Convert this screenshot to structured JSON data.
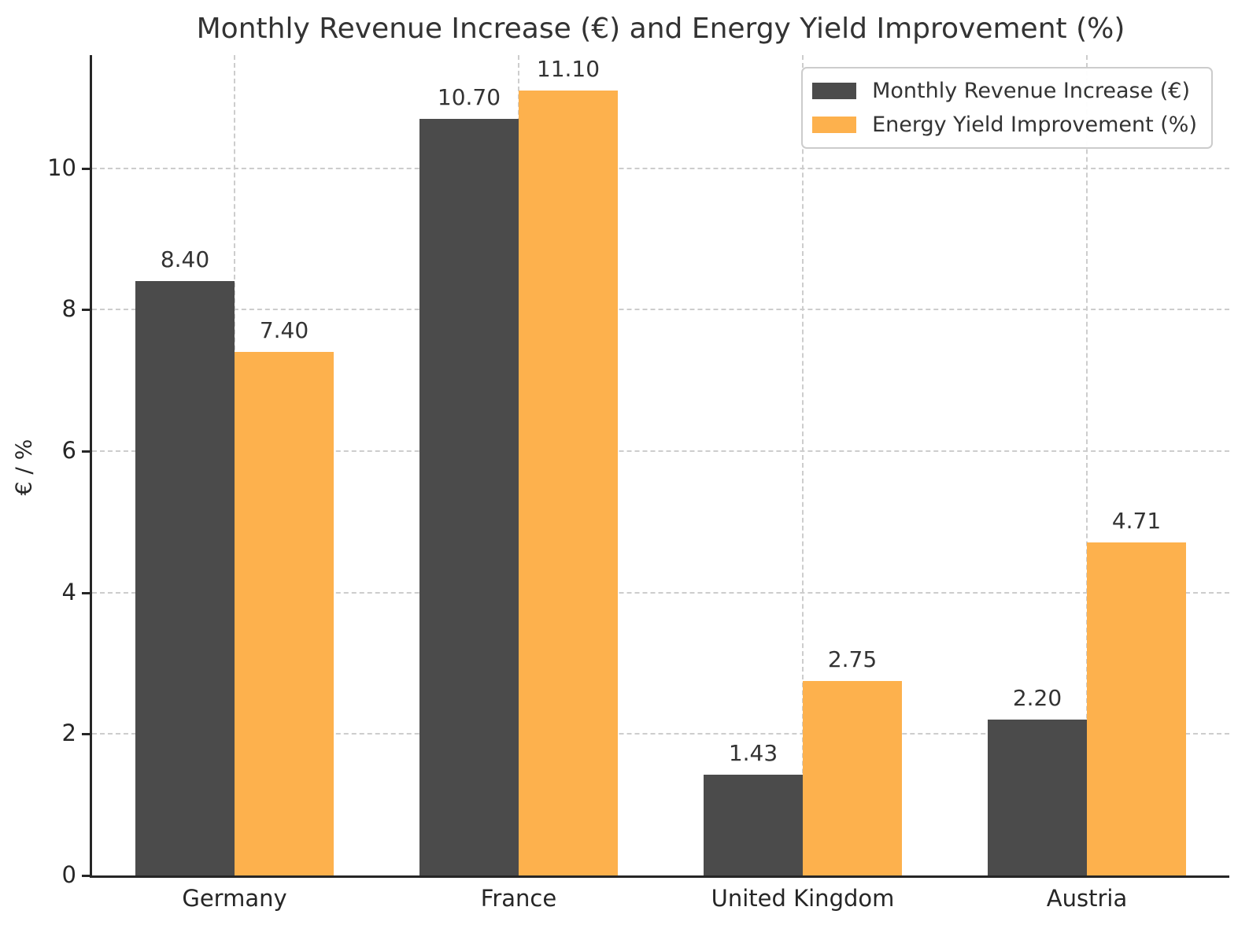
{
  "chart_data": {
    "type": "bar",
    "title": "Monthly Revenue Increase (€) and Energy Yield Improvement (%)",
    "categories": [
      "Germany",
      "France",
      "United Kingdom",
      "Austria"
    ],
    "series": [
      {
        "name": "Monthly Revenue Increase (€)",
        "color": "#4b4b4b",
        "values": [
          8.4,
          10.7,
          1.43,
          2.2
        ]
      },
      {
        "name": "Energy Yield Improvement (%)",
        "color": "#fdb14d",
        "values": [
          7.4,
          11.1,
          2.75,
          4.71
        ]
      }
    ],
    "xlabel": "",
    "ylabel": "€ / %",
    "yticks": [
      0,
      2,
      4,
      6,
      8,
      10
    ],
    "ylim": [
      0,
      11.6
    ],
    "grid": true,
    "grid_style": "dashed",
    "legend_position": "upper right",
    "value_label_format": "2-decimals",
    "bar_width_fraction": 0.35,
    "colors": {
      "axis": "#262626",
      "gridline": "#cdcdcd",
      "title_text": "#333333",
      "background": "#ffffff"
    }
  }
}
